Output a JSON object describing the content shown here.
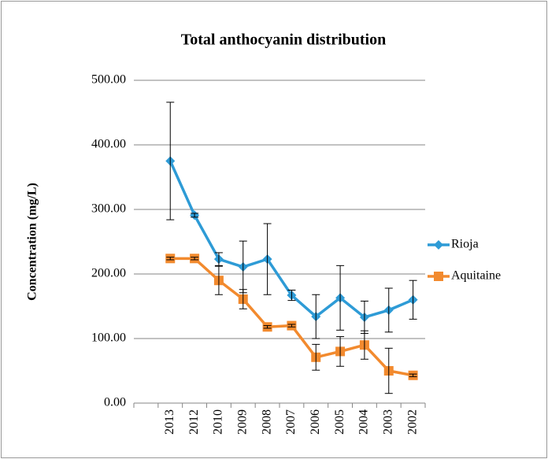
{
  "chart_data": {
    "type": "line",
    "title": "Total anthocyanin distribution",
    "ylabel": "Concentration (mg/L)",
    "categories": [
      null,
      "2013",
      "2012",
      "2010",
      "2009",
      "2008",
      "2007",
      "2006",
      "2005",
      "2004",
      "2003",
      "2002"
    ],
    "series": [
      {
        "name": "Rioja",
        "color": "#2e9bd6",
        "marker": "diamond",
        "values": [
          null,
          375,
          291,
          223,
          211,
          223,
          167,
          134,
          163,
          133,
          144,
          160
        ],
        "errors": [
          null,
          91,
          3,
          10,
          40,
          55,
          8,
          34,
          50,
          25,
          34,
          30
        ]
      },
      {
        "name": "Aquitaine",
        "color": "#f28a2e",
        "marker": "square",
        "values": [
          null,
          224,
          224,
          190,
          161,
          118,
          120,
          71,
          80,
          90,
          50,
          43
        ],
        "errors": [
          null,
          2,
          2,
          22,
          15,
          2,
          2,
          20,
          23,
          22,
          35,
          2
        ]
      }
    ],
    "ylim": [
      0,
      500
    ],
    "yticks": [
      {
        "value": 0,
        "label": "0.00"
      },
      {
        "value": 100,
        "label": "100.00"
      },
      {
        "value": 200,
        "label": "200.00"
      },
      {
        "value": 300,
        "label": "300.00"
      },
      {
        "value": 400,
        "label": "400.00"
      },
      {
        "value": 500,
        "label": "500.00"
      }
    ],
    "grid": true,
    "legend": "right"
  }
}
